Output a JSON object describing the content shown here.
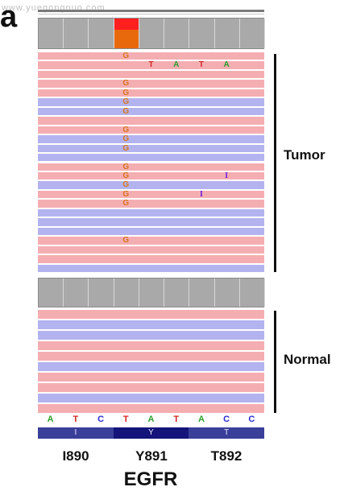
{
  "panel_label": "a",
  "watermark": "www.yuegongnuo.com",
  "colors": {
    "read_pink": "#f4aeb2",
    "read_blue": "#b3b3ef",
    "coverage_gray": "#a9a9a9",
    "mismatch_red": "#ff1f1f",
    "mismatch_orange": "#e8690c",
    "base_A": "#2e9e2e",
    "base_T": "#d42424",
    "base_C": "#2a2ad4",
    "base_G": "#d9731c",
    "insertion": "#7a2bd6",
    "aa_track": "#3a3f9a"
  },
  "tumor": {
    "label": "Tumor",
    "row_colors": [
      "pink",
      "pink",
      "pink",
      "pink",
      "pink",
      "blue",
      "blue",
      "pink",
      "pink",
      "blue",
      "blue",
      "blue",
      "pink",
      "pink",
      "blue",
      "pink",
      "pink",
      "blue",
      "blue",
      "blue",
      "pink",
      "pink",
      "pink",
      "blue"
    ],
    "mismatches": [
      {
        "row": 0,
        "col": 3,
        "base": "G"
      },
      {
        "row": 1,
        "col": 4,
        "base": "T"
      },
      {
        "row": 1,
        "col": 5,
        "base": "A"
      },
      {
        "row": 1,
        "col": 6,
        "base": "T"
      },
      {
        "row": 1,
        "col": 7,
        "base": "A"
      },
      {
        "row": 3,
        "col": 3,
        "base": "G"
      },
      {
        "row": 4,
        "col": 3,
        "base": "G"
      },
      {
        "row": 5,
        "col": 3,
        "base": "G"
      },
      {
        "row": 6,
        "col": 3,
        "base": "G"
      },
      {
        "row": 8,
        "col": 3,
        "base": "G"
      },
      {
        "row": 9,
        "col": 3,
        "base": "G"
      },
      {
        "row": 10,
        "col": 3,
        "base": "G"
      },
      {
        "row": 12,
        "col": 3,
        "base": "G"
      },
      {
        "row": 13,
        "col": 3,
        "base": "G"
      },
      {
        "row": 14,
        "col": 3,
        "base": "G"
      },
      {
        "row": 15,
        "col": 3,
        "base": "G"
      },
      {
        "row": 16,
        "col": 3,
        "base": "G"
      },
      {
        "row": 20,
        "col": 3,
        "base": "G"
      }
    ],
    "insertions": [
      {
        "row": 13,
        "col": 7,
        "label": "I"
      },
      {
        "row": 15,
        "col": 6,
        "label": "I"
      }
    ]
  },
  "normal": {
    "label": "Normal",
    "row_colors": [
      "pink",
      "blue",
      "blue",
      "pink",
      "pink",
      "blue",
      "pink",
      "pink",
      "blue",
      "pink"
    ]
  },
  "reference_sequence": [
    "A",
    "T",
    "C",
    "T",
    "A",
    "T",
    "A",
    "C",
    "C"
  ],
  "amino_acids": [
    "I",
    "Y",
    "T"
  ],
  "codons": [
    "I890",
    "Y891",
    "T892"
  ],
  "gene": "EGFR"
}
